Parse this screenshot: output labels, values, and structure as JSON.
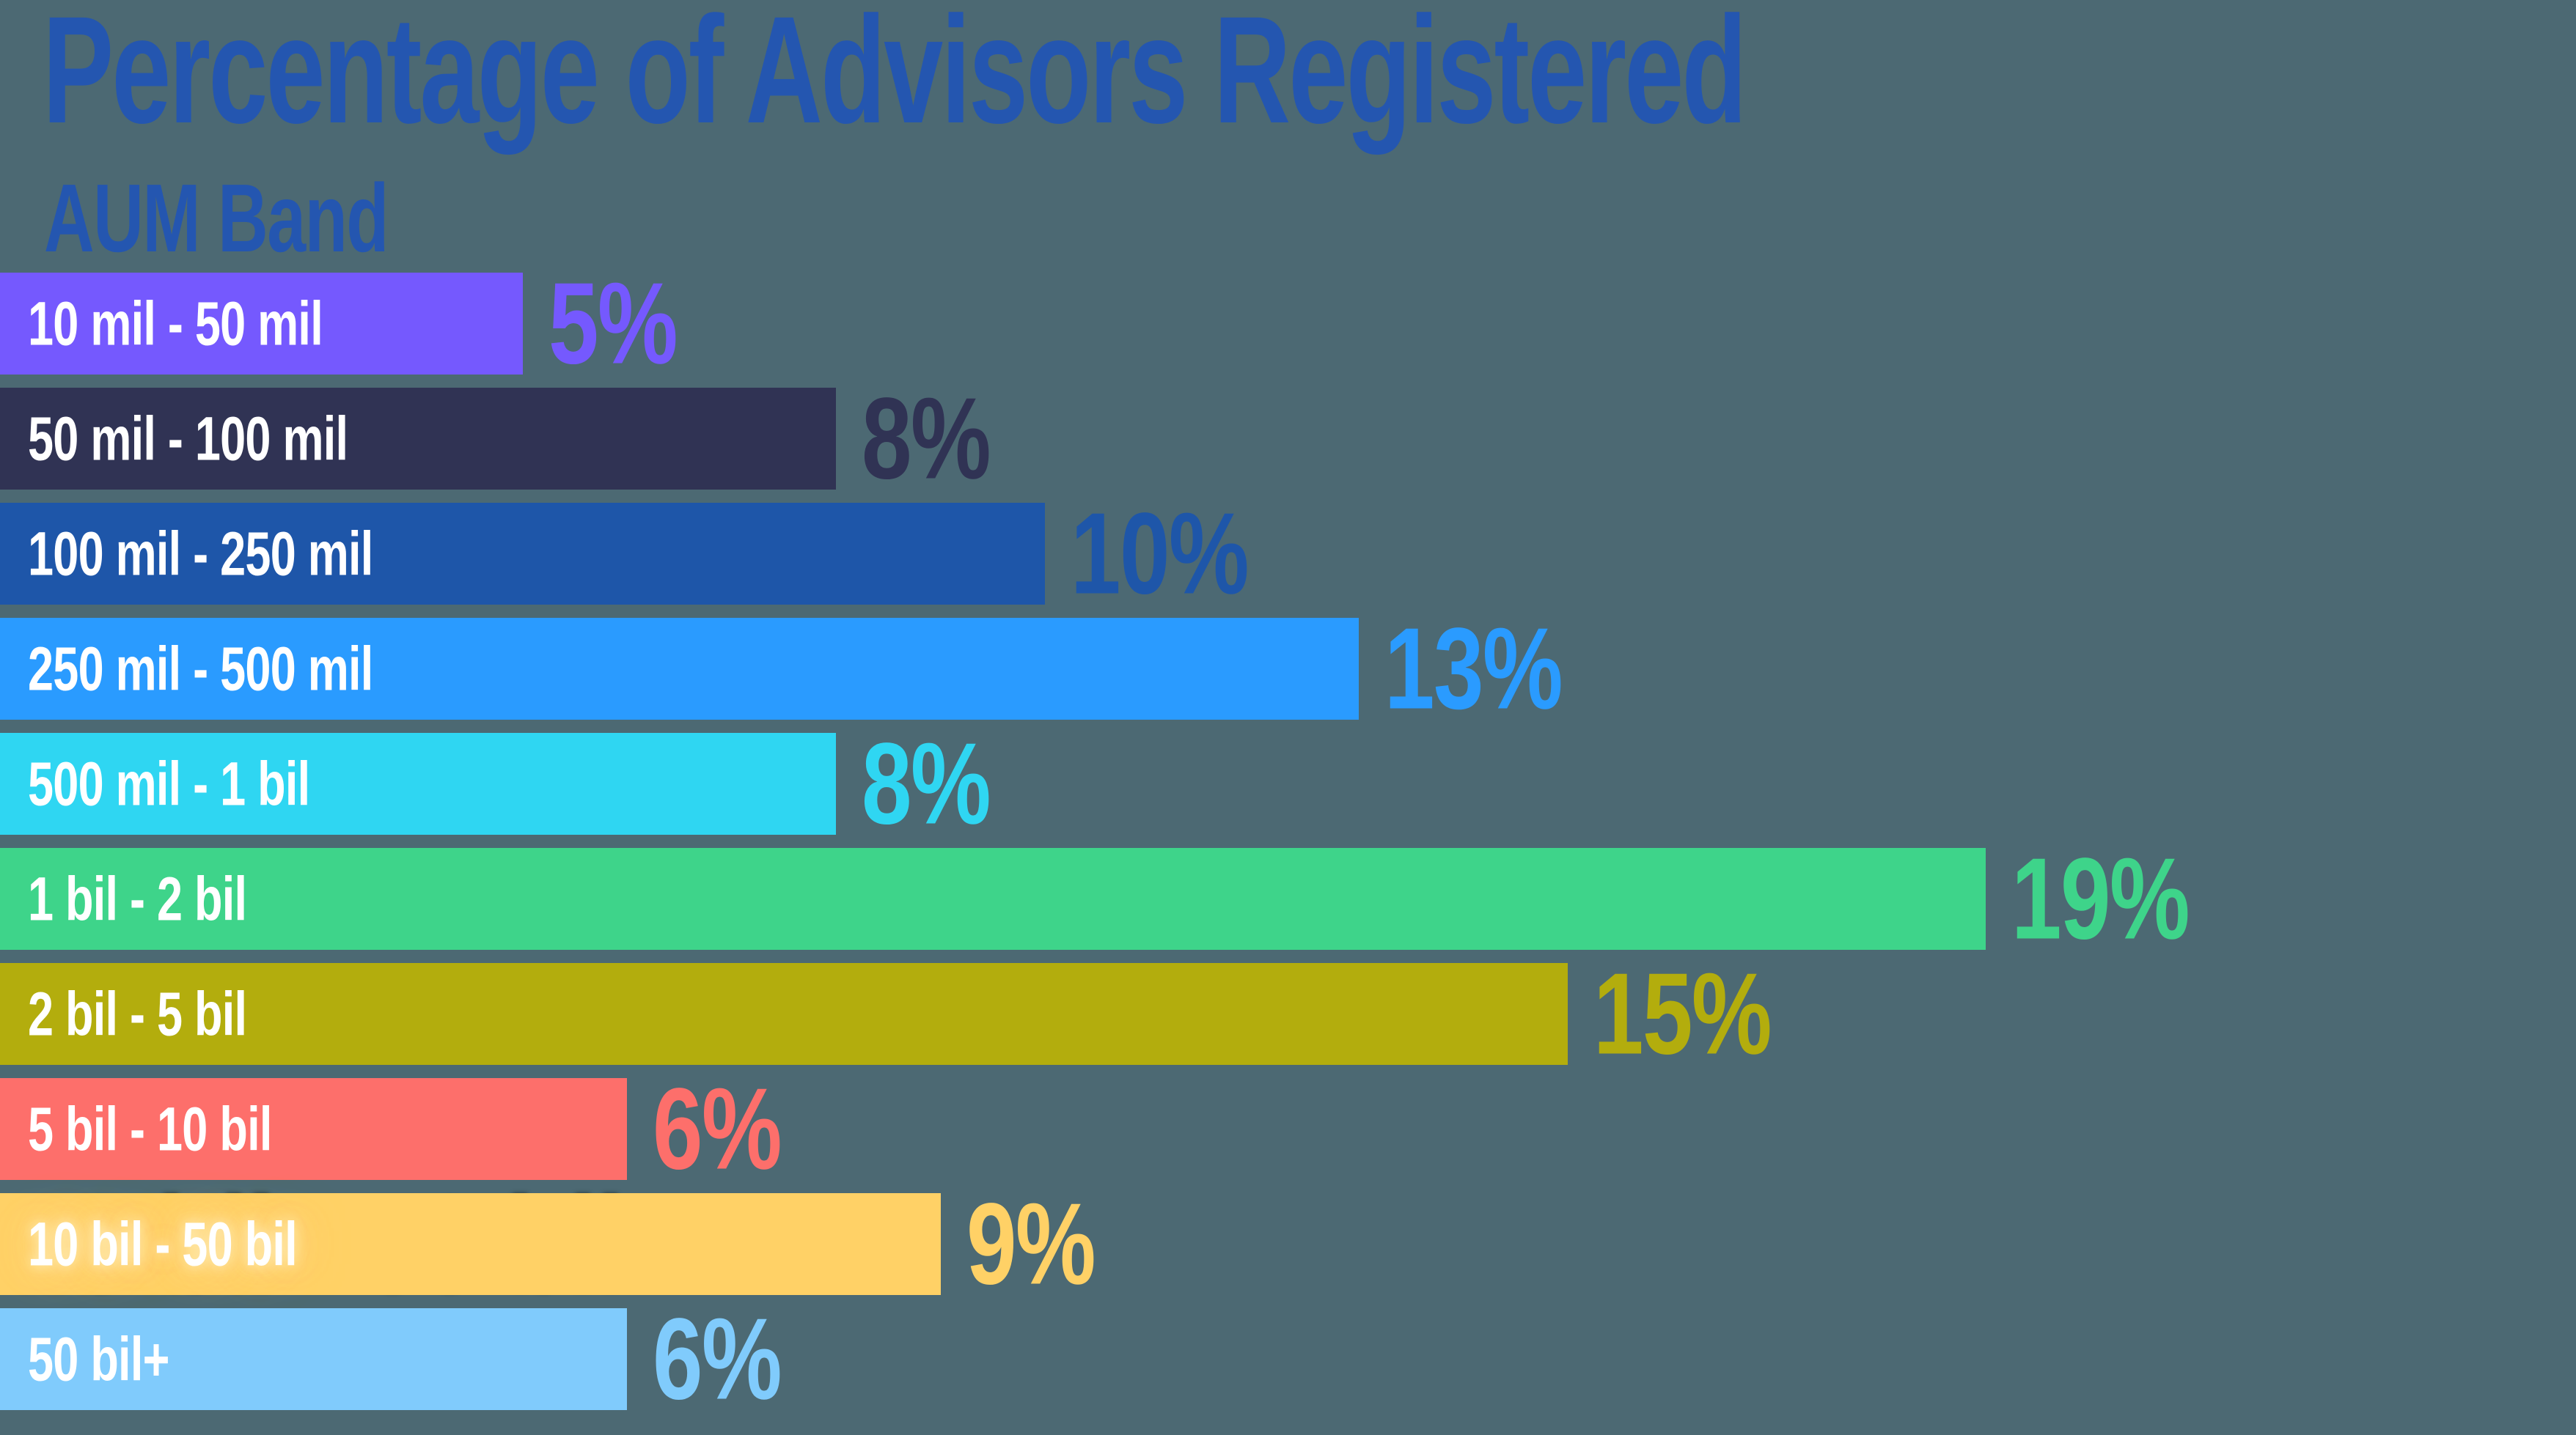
{
  "title": "Percentage of Advisors Registered",
  "subtitle": "AUM Band",
  "colors": {
    "background": "#4C6973",
    "title_text": "#2456B0",
    "bar_label_text": "#FFFFFF"
  },
  "chart_data": {
    "type": "bar",
    "orientation": "horizontal",
    "title": "Percentage of Advisors Registered",
    "ylabel": "AUM Band",
    "xlim": [
      0,
      19
    ],
    "grid": false,
    "legend": false,
    "categories": [
      "10 mil - 50 mil",
      "50 mil - 100 mil",
      "100 mil - 250 mil",
      "250 mil - 500 mil",
      "500 mil - 1 bil",
      "1 bil - 2 bil",
      "2 bil - 5 bil",
      "5 bil - 10 bil",
      "10 bil - 50 bil",
      "50 bil+"
    ],
    "values": [
      5,
      8,
      10,
      13,
      8,
      19,
      15,
      6,
      9,
      6
    ],
    "value_labels": [
      "5%",
      "8%",
      "10%",
      "13%",
      "8%",
      "19%",
      "15%",
      "6%",
      "9%",
      "6%"
    ],
    "bar_colors": [
      "#7559FE",
      "#303354",
      "#1E56A9",
      "#2A9BFF",
      "#2FD6F2",
      "#3ED48A",
      "#B3AD0D",
      "#FD6F6B",
      "#FFD166",
      "#80CBFC"
    ],
    "label_effects": [
      {
        "index": 8,
        "effect": "black-halo-shadow-with-warm-glow"
      }
    ]
  }
}
